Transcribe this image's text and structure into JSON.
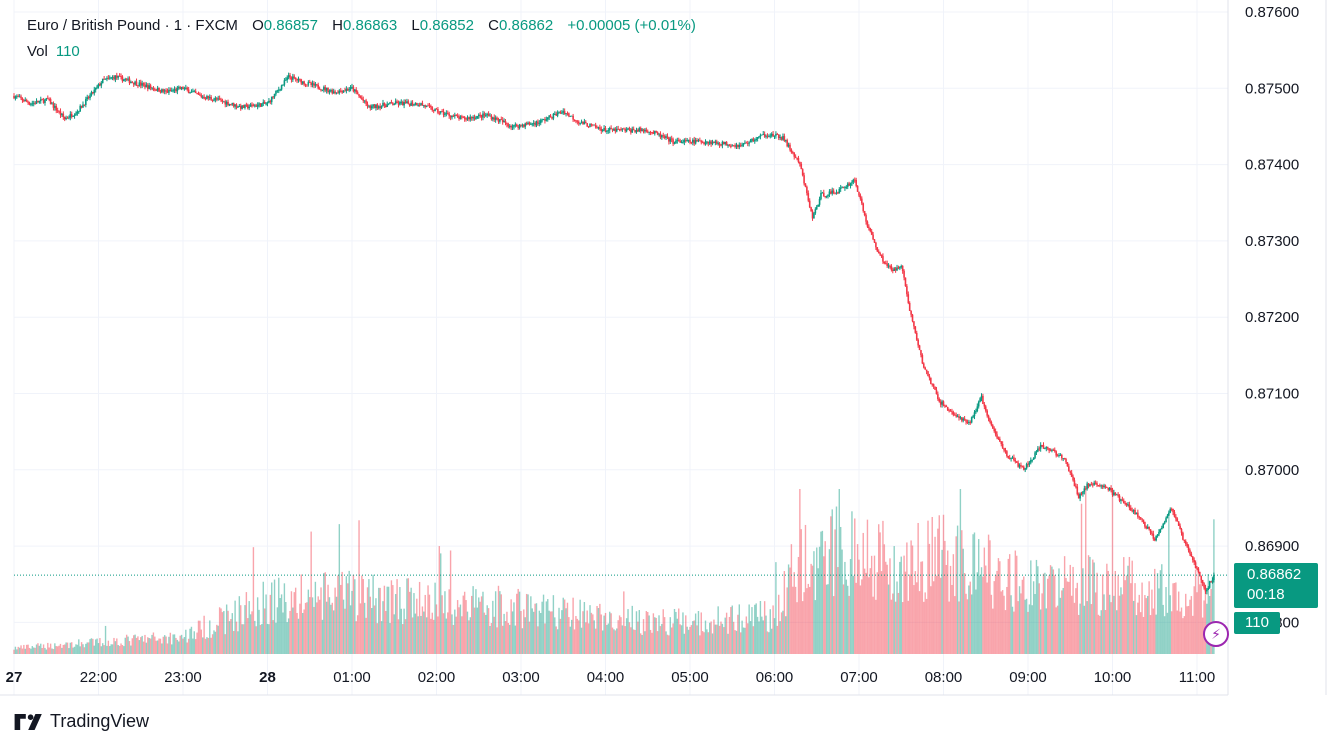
{
  "legend": {
    "symbol": "Euro / British Pound · 1 · FXCM",
    "open_label": "O",
    "open": "0.86857",
    "high_label": "H",
    "high": "0.86863",
    "low_label": "L",
    "low": "0.86852",
    "close_label": "C",
    "close": "0.86862",
    "change": "+0.00005 (+0.01%)"
  },
  "volume_legend": {
    "label": "Vol",
    "value": "110"
  },
  "price_tag": {
    "price": "0.86862",
    "countdown": "00:18"
  },
  "volume_tag": "110",
  "brand": "TradingView",
  "colors": {
    "up": "#089981",
    "down": "#f23645",
    "alert": "#9c27b0"
  },
  "icons": [
    "tradingview-logo-icon",
    "lightning-alert-icon"
  ],
  "chart_data": {
    "type": "candlestick",
    "y_axis_ticks": [
      "0.87600",
      "0.87500",
      "0.87400",
      "0.87300",
      "0.87200",
      "0.87100",
      "0.87000",
      "0.86900",
      "0.86800"
    ],
    "ylim": [
      0.8676,
      0.8761
    ],
    "x_axis_ticks": [
      {
        "label": "27",
        "t": 21.0
      },
      {
        "label": "22:00",
        "t": 22.0
      },
      {
        "label": "23:00",
        "t": 23.0
      },
      {
        "label": "28",
        "t": 24.0
      },
      {
        "label": "01:00",
        "t": 25.0
      },
      {
        "label": "02:00",
        "t": 26.0
      },
      {
        "label": "03:00",
        "t": 27.0
      },
      {
        "label": "04:00",
        "t": 28.0
      },
      {
        "label": "05:00",
        "t": 29.0
      },
      {
        "label": "06:00",
        "t": 30.0
      },
      {
        "label": "07:00",
        "t": 31.0
      },
      {
        "label": "08:00",
        "t": 32.0
      },
      {
        "label": "09:00",
        "t": 33.0
      },
      {
        "label": "10:00",
        "t": 34.0
      },
      {
        "label": "11:00",
        "t": 35.0
      }
    ],
    "xlim": [
      21.0,
      35.45
    ],
    "price_path": [
      [
        21.0,
        0.8749
      ],
      [
        21.2,
        0.8748
      ],
      [
        21.4,
        0.87485
      ],
      [
        21.6,
        0.8746
      ],
      [
        21.75,
        0.8747
      ],
      [
        21.9,
        0.8749
      ],
      [
        22.05,
        0.8751
      ],
      [
        22.2,
        0.87515
      ],
      [
        22.5,
        0.87505
      ],
      [
        22.8,
        0.87495
      ],
      [
        23.0,
        0.875
      ],
      [
        23.2,
        0.8749
      ],
      [
        23.4,
        0.87485
      ],
      [
        23.7,
        0.87475
      ],
      [
        24.0,
        0.8748
      ],
      [
        24.25,
        0.87515
      ],
      [
        24.5,
        0.87505
      ],
      [
        24.8,
        0.87495
      ],
      [
        25.0,
        0.875
      ],
      [
        25.2,
        0.87475
      ],
      [
        25.5,
        0.8748
      ],
      [
        25.8,
        0.8748
      ],
      [
        26.0,
        0.8747
      ],
      [
        26.3,
        0.8746
      ],
      [
        26.6,
        0.87465
      ],
      [
        26.9,
        0.8745
      ],
      [
        27.2,
        0.87455
      ],
      [
        27.5,
        0.8747
      ],
      [
        27.7,
        0.87455
      ],
      [
        28.0,
        0.87445
      ],
      [
        28.5,
        0.87445
      ],
      [
        28.8,
        0.8743
      ],
      [
        29.2,
        0.8743
      ],
      [
        29.6,
        0.87425
      ],
      [
        29.9,
        0.8744
      ],
      [
        30.1,
        0.87435
      ],
      [
        30.3,
        0.874
      ],
      [
        30.45,
        0.8733
      ],
      [
        30.55,
        0.8736
      ],
      [
        30.75,
        0.87365
      ],
      [
        30.95,
        0.8738
      ],
      [
        31.1,
        0.8732
      ],
      [
        31.25,
        0.8728
      ],
      [
        31.4,
        0.8726
      ],
      [
        31.5,
        0.8727
      ],
      [
        31.6,
        0.8721
      ],
      [
        31.75,
        0.8714
      ],
      [
        31.95,
        0.8709
      ],
      [
        32.15,
        0.8707
      ],
      [
        32.3,
        0.8706
      ],
      [
        32.45,
        0.87095
      ],
      [
        32.55,
        0.8706
      ],
      [
        32.75,
        0.8702
      ],
      [
        32.95,
        0.87
      ],
      [
        33.15,
        0.8703
      ],
      [
        33.3,
        0.87025
      ],
      [
        33.45,
        0.8701
      ],
      [
        33.6,
        0.86965
      ],
      [
        33.7,
        0.8698
      ],
      [
        33.9,
        0.8698
      ],
      [
        34.1,
        0.8696
      ],
      [
        34.3,
        0.8694
      ],
      [
        34.5,
        0.8691
      ],
      [
        34.7,
        0.8695
      ],
      [
        34.85,
        0.86905
      ],
      [
        35.0,
        0.8687
      ],
      [
        35.1,
        0.8684
      ],
      [
        35.2,
        0.86862
      ]
    ],
    "volume_range": [
      0,
      170
    ],
    "volume_profile": [
      [
        21.0,
        6
      ],
      [
        22.0,
        12
      ],
      [
        23.0,
        18
      ],
      [
        24.0,
        55
      ],
      [
        25.0,
        60
      ],
      [
        26.0,
        52
      ],
      [
        27.0,
        48
      ],
      [
        28.0,
        36
      ],
      [
        29.0,
        32
      ],
      [
        30.0,
        40
      ],
      [
        30.2,
        85
      ],
      [
        30.8,
        110
      ],
      [
        31.5,
        95
      ],
      [
        32.0,
        100
      ],
      [
        33.0,
        72
      ],
      [
        34.0,
        70
      ],
      [
        35.0,
        65
      ],
      [
        35.2,
        60
      ]
    ],
    "last_price": 0.86862,
    "last_volume": 110
  }
}
